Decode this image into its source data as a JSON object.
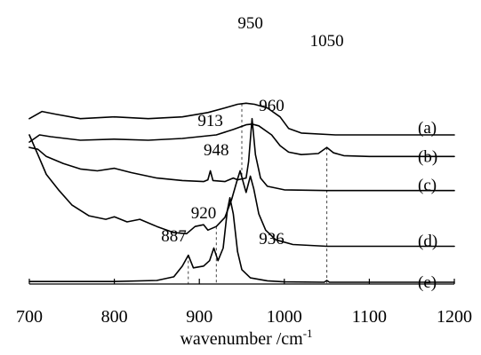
{
  "chart_data": {
    "type": "line",
    "title": "",
    "xlabel": "wavenumber /cm",
    "xlabel_superscript": "-1",
    "ylabel": "",
    "xlim": [
      700,
      1200
    ],
    "xticks": [
      700,
      800,
      900,
      1000,
      1100,
      1200
    ],
    "stacked_offset": true,
    "grid": false,
    "legend": "none",
    "series": [
      {
        "name": "(a)",
        "offset": 4.1,
        "points": [
          [
            700,
            0.45
          ],
          [
            715,
            0.65
          ],
          [
            730,
            0.58
          ],
          [
            760,
            0.45
          ],
          [
            800,
            0.5
          ],
          [
            840,
            0.45
          ],
          [
            880,
            0.5
          ],
          [
            910,
            0.62
          ],
          [
            930,
            0.75
          ],
          [
            945,
            0.85
          ],
          [
            955,
            0.88
          ],
          [
            965,
            0.85
          ],
          [
            980,
            0.75
          ],
          [
            995,
            0.5
          ],
          [
            1005,
            0.18
          ],
          [
            1020,
            0.05
          ],
          [
            1060,
            0.0
          ],
          [
            1100,
            0.0
          ],
          [
            1200,
            0.0
          ]
        ]
      },
      {
        "name": "(b)",
        "offset": 3.5,
        "points": [
          [
            700,
            0.4
          ],
          [
            712,
            0.6
          ],
          [
            725,
            0.55
          ],
          [
            760,
            0.45
          ],
          [
            800,
            0.48
          ],
          [
            840,
            0.45
          ],
          [
            880,
            0.5
          ],
          [
            920,
            0.6
          ],
          [
            940,
            0.75
          ],
          [
            955,
            0.88
          ],
          [
            962,
            0.9
          ],
          [
            970,
            0.85
          ],
          [
            985,
            0.6
          ],
          [
            995,
            0.3
          ],
          [
            1005,
            0.12
          ],
          [
            1020,
            0.05
          ],
          [
            1040,
            0.08
          ],
          [
            1050,
            0.25
          ],
          [
            1058,
            0.1
          ],
          [
            1070,
            0.02
          ],
          [
            1100,
            0.0
          ],
          [
            1200,
            0.0
          ]
        ]
      },
      {
        "name": "(c)",
        "offset": 2.55,
        "points": [
          [
            700,
            1.2
          ],
          [
            710,
            1.15
          ],
          [
            720,
            0.95
          ],
          [
            740,
            0.75
          ],
          [
            760,
            0.6
          ],
          [
            780,
            0.55
          ],
          [
            800,
            0.62
          ],
          [
            820,
            0.5
          ],
          [
            850,
            0.35
          ],
          [
            880,
            0.28
          ],
          [
            905,
            0.25
          ],
          [
            910,
            0.3
          ],
          [
            913,
            0.55
          ],
          [
            916,
            0.28
          ],
          [
            930,
            0.25
          ],
          [
            940,
            0.35
          ],
          [
            945,
            0.3
          ],
          [
            955,
            0.35
          ],
          [
            958,
            0.8
          ],
          [
            962,
            2.0
          ],
          [
            966,
            1.0
          ],
          [
            972,
            0.35
          ],
          [
            980,
            0.12
          ],
          [
            1000,
            0.02
          ],
          [
            1050,
            0.0
          ],
          [
            1200,
            0.0
          ]
        ]
      },
      {
        "name": "(d)",
        "offset": 1.0,
        "points": [
          [
            700,
            3.1
          ],
          [
            710,
            2.55
          ],
          [
            720,
            2.0
          ],
          [
            735,
            1.55
          ],
          [
            750,
            1.15
          ],
          [
            770,
            0.85
          ],
          [
            790,
            0.75
          ],
          [
            800,
            0.82
          ],
          [
            815,
            0.68
          ],
          [
            830,
            0.75
          ],
          [
            850,
            0.55
          ],
          [
            870,
            0.38
          ],
          [
            885,
            0.35
          ],
          [
            895,
            0.55
          ],
          [
            905,
            0.6
          ],
          [
            910,
            0.45
          ],
          [
            920,
            0.55
          ],
          [
            930,
            0.8
          ],
          [
            938,
            1.3
          ],
          [
            944,
            1.8
          ],
          [
            948,
            2.1
          ],
          [
            952,
            1.75
          ],
          [
            955,
            1.5
          ],
          [
            960,
            1.95
          ],
          [
            964,
            1.6
          ],
          [
            970,
            0.9
          ],
          [
            978,
            0.45
          ],
          [
            990,
            0.18
          ],
          [
            1010,
            0.05
          ],
          [
            1050,
            0.0
          ],
          [
            1200,
            0.0
          ]
        ]
      },
      {
        "name": "(e)",
        "offset": 0.0,
        "points": [
          [
            700,
            0.02
          ],
          [
            800,
            0.02
          ],
          [
            850,
            0.05
          ],
          [
            870,
            0.15
          ],
          [
            880,
            0.45
          ],
          [
            887,
            0.75
          ],
          [
            893,
            0.4
          ],
          [
            905,
            0.45
          ],
          [
            912,
            0.6
          ],
          [
            917,
            0.95
          ],
          [
            922,
            0.6
          ],
          [
            928,
            0.95
          ],
          [
            933,
            2.0
          ],
          [
            936,
            2.35
          ],
          [
            940,
            1.9
          ],
          [
            945,
            0.85
          ],
          [
            950,
            0.35
          ],
          [
            960,
            0.12
          ],
          [
            980,
            0.04
          ],
          [
            1000,
            0.01
          ],
          [
            1047,
            0.0
          ],
          [
            1050,
            0.05
          ],
          [
            1053,
            0.0
          ],
          [
            1200,
            0.0
          ]
        ]
      }
    ],
    "annotations": [
      {
        "label": "950",
        "x": 950,
        "guide": true,
        "guide_from": "a",
        "guide_to": "c"
      },
      {
        "label": "1050",
        "x": 1050,
        "guide": true,
        "guide_from": "b",
        "guide_to": "axis"
      },
      {
        "label": "913",
        "x": 913,
        "guide": false
      },
      {
        "label": "960",
        "x": 960,
        "guide": false
      },
      {
        "label": "948",
        "x": 948,
        "guide": false
      },
      {
        "label": "920",
        "x": 920,
        "guide": true,
        "guide_from": "d",
        "guide_to": "axis"
      },
      {
        "label": "887",
        "x": 887,
        "guide": true,
        "guide_from": "e",
        "guide_to": "axis"
      },
      {
        "label": "936",
        "x": 936,
        "guide": false
      }
    ]
  }
}
